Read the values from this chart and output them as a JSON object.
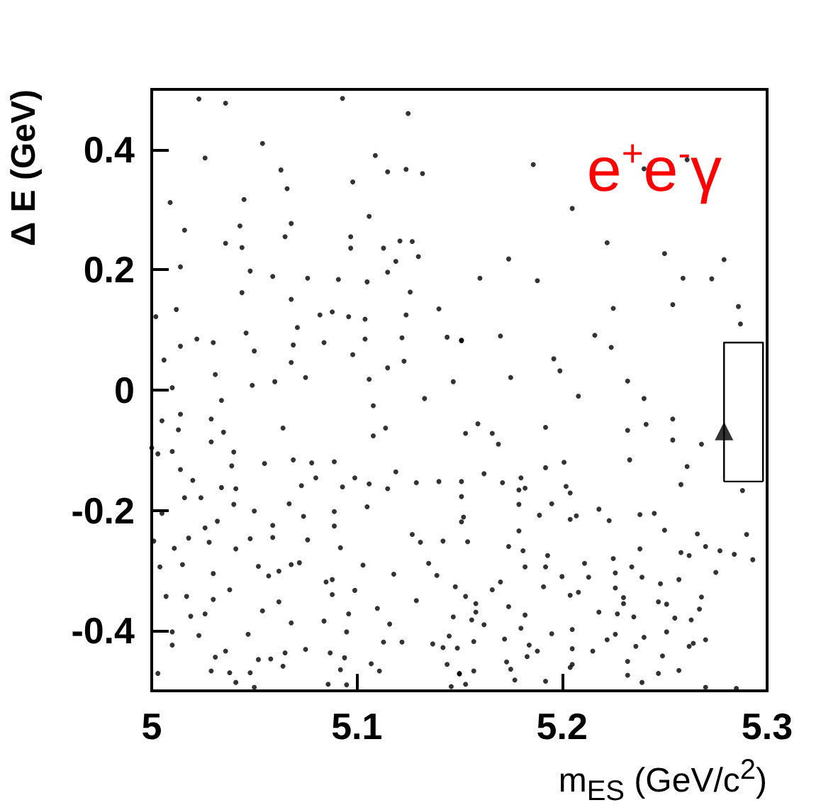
{
  "chart_data": {
    "type": "scatter",
    "xlabel": "m$_{ES}$ (GeV/c$^{2}$)",
    "ylabel": "Δ E (GeV)",
    "annotations": [
      "e$^{+}$e$^{-}$γ"
    ],
    "xlim": [
      5,
      5.3
    ],
    "xticks": [
      5,
      5.1,
      5.2,
      5.3
    ],
    "ylim": [
      -0.5,
      0.5
    ],
    "yticks": [
      -0.4,
      -0.2,
      0,
      0.2,
      0.4
    ],
    "grid": false,
    "series": [
      {
        "type": "scatter",
        "color": "#000000",
        "marker": "circle",
        "x": [
          5.023,
          5.036,
          5.093,
          5.125,
          5.054,
          5.026,
          5.109,
          5.115,
          5.124,
          5.132,
          5.063,
          5.098,
          5.066,
          5.009,
          5.045,
          5.106,
          5.016,
          5.043,
          5.068,
          5.065,
          5.036,
          5.044,
          5.097,
          5.097,
          5.113,
          5.121,
          5.127,
          5.119,
          5.13,
          5.014,
          5.048,
          5.059,
          5.076,
          5.091,
          5.115,
          5.105,
          5.044,
          5.068,
          5.126,
          5.002,
          5.012,
          5.082,
          5.088,
          5.096,
          5.104,
          5.124,
          5.14,
          5.071,
          5.014,
          5.022,
          5.03,
          5.046,
          5.05,
          5.069,
          5.084,
          5.104,
          5.122,
          5.144,
          5.151,
          5.006,
          5.031,
          5.068,
          5.075,
          5.098,
          5.115,
          5.123,
          5.01,
          5.049,
          5.06,
          5.106,
          5.147,
          5.186,
          5.205,
          5.222,
          5.174,
          5.25,
          5.279,
          5.16,
          5.188,
          5.259,
          5.273,
          5.225,
          5.254,
          5.286,
          5.287,
          5.151,
          5.17,
          5.216,
          5.224,
          5.196,
          5.199,
          5.175,
          5.232,
          5.24,
          5.261,
          5.034,
          5.005,
          5.014,
          5.013,
          5.029,
          5.035,
          5.064,
          5.108,
          5.133,
          5.108,
          5.114,
          5.153,
          5.0,
          5.003,
          5.01,
          5.029,
          5.04,
          5.014,
          5.02,
          5.039,
          5.055,
          5.069,
          5.078,
          5.089,
          5.016,
          5.024,
          5.034,
          5.041,
          5.04,
          5.073,
          5.08,
          5.093,
          5.099,
          5.106,
          5.115,
          5.119,
          5.129,
          5.14,
          5.151,
          5.005,
          5.026,
          5.032,
          5.05,
          5.059,
          5.067,
          5.074,
          5.089,
          5.105,
          5.152,
          5.001,
          5.011,
          5.018,
          5.028,
          5.048,
          5.041,
          5.059,
          5.076,
          5.089,
          5.092,
          5.127,
          5.131,
          5.142,
          5.004,
          5.015,
          5.03,
          5.052,
          5.062,
          5.068,
          5.072,
          5.103,
          5.057,
          5.085,
          5.088,
          5.118,
          5.135,
          5.139,
          5.007,
          5.017,
          5.038,
          5.03,
          5.062,
          5.088,
          5.099,
          5.129,
          5.148,
          5.153,
          5.019,
          5.026,
          5.054,
          5.068,
          5.084,
          5.096,
          5.11,
          5.116,
          5.147,
          5.01,
          5.01,
          5.023,
          5.047,
          5.075,
          5.095,
          5.113,
          5.122,
          5.145,
          5.031,
          5.036,
          5.052,
          5.058,
          5.065,
          5.087,
          5.094,
          5.137,
          5.142,
          5.144,
          5.003,
          5.029,
          5.038,
          5.048,
          5.064,
          5.092,
          5.107,
          5.111,
          5.15,
          5.041,
          5.05,
          5.086,
          5.095,
          5.146,
          5.153,
          5.208,
          5.24,
          5.159,
          5.166,
          5.169,
          5.192,
          5.232,
          5.241,
          5.254,
          5.254,
          5.268,
          5.233,
          5.162,
          5.171,
          5.18,
          5.179,
          5.182,
          5.192,
          5.201,
          5.202,
          5.204,
          5.261,
          5.258,
          5.288,
          5.151,
          5.179,
          5.195,
          5.189,
          5.204,
          5.207,
          5.218,
          5.223,
          5.238,
          5.245,
          5.151,
          5.25,
          5.179,
          5.154,
          5.174,
          5.181,
          5.193,
          5.266,
          5.27,
          5.277,
          5.284,
          5.29,
          5.293,
          5.238,
          5.258,
          5.262,
          5.182,
          5.192,
          5.211,
          5.225,
          5.234,
          5.275,
          5.17,
          5.166,
          5.191,
          5.2,
          5.213,
          5.226,
          5.239,
          5.226,
          5.248,
          5.257,
          5.204,
          5.208,
          5.23,
          5.268,
          5.158,
          5.174,
          5.247,
          5.251,
          5.23,
          5.267,
          5.158,
          5.156,
          5.182,
          5.218,
          5.227,
          5.235,
          5.255,
          5.263,
          5.162,
          5.18,
          5.195,
          5.205,
          5.226,
          5.24,
          5.251,
          5.172,
          5.157,
          5.222,
          5.27,
          5.149,
          5.184,
          5.188,
          5.205,
          5.215,
          5.236,
          5.262,
          5.264,
          5.183,
          5.249,
          5.173,
          5.232,
          5.15,
          5.157,
          5.175,
          5.205,
          5.204,
          5.232,
          5.247,
          5.257,
          5.177,
          5.192,
          5.239,
          5.27,
          5.285
        ],
        "values": [
          0.484,
          0.477,
          0.485,
          0.46,
          0.41,
          0.386,
          0.39,
          0.363,
          0.367,
          0.36,
          0.366,
          0.346,
          0.335,
          0.312,
          0.317,
          0.289,
          0.266,
          0.273,
          0.277,
          0.255,
          0.244,
          0.237,
          0.255,
          0.236,
          0.236,
          0.248,
          0.247,
          0.214,
          0.222,
          0.205,
          0.198,
          0.189,
          0.186,
          0.184,
          0.196,
          0.18,
          0.162,
          0.151,
          0.163,
          0.122,
          0.134,
          0.125,
          0.13,
          0.122,
          0.118,
          0.125,
          0.135,
          0.104,
          0.073,
          0.085,
          0.079,
          0.095,
          0.065,
          0.075,
          0.079,
          0.085,
          0.087,
          0.088,
          0.082,
          0.05,
          0.026,
          0.046,
          0.021,
          0.059,
          0.037,
          0.048,
          0.004,
          0.008,
          0.014,
          0.018,
          0.014,
          0.375,
          0.302,
          0.245,
          0.218,
          0.227,
          0.217,
          0.186,
          0.182,
          0.186,
          0.185,
          0.136,
          0.142,
          0.139,
          0.11,
          0.083,
          0.09,
          0.091,
          0.071,
          0.052,
          0.032,
          0.021,
          0.015,
          0.368,
          0.383,
          -0.017,
          -0.051,
          -0.04,
          -0.066,
          -0.048,
          -0.07,
          -0.063,
          -0.026,
          -0.014,
          -0.076,
          -0.063,
          -0.072,
          -0.096,
          -0.106,
          -0.102,
          -0.086,
          -0.103,
          -0.132,
          -0.15,
          -0.126,
          -0.122,
          -0.116,
          -0.121,
          -0.119,
          -0.179,
          -0.179,
          -0.162,
          -0.164,
          -0.19,
          -0.159,
          -0.146,
          -0.161,
          -0.146,
          -0.156,
          -0.164,
          -0.136,
          -0.154,
          -0.152,
          -0.152,
          -0.205,
          -0.229,
          -0.218,
          -0.201,
          -0.225,
          -0.189,
          -0.21,
          -0.202,
          -0.194,
          -0.211,
          -0.251,
          -0.263,
          -0.246,
          -0.253,
          -0.247,
          -0.264,
          -0.245,
          -0.249,
          -0.226,
          -0.262,
          -0.24,
          -0.253,
          -0.251,
          -0.294,
          -0.29,
          -0.305,
          -0.293,
          -0.301,
          -0.29,
          -0.287,
          -0.291,
          -0.309,
          -0.319,
          -0.315,
          -0.306,
          -0.288,
          -0.308,
          -0.343,
          -0.343,
          -0.332,
          -0.348,
          -0.352,
          -0.34,
          -0.333,
          -0.35,
          -0.327,
          -0.343,
          -0.376,
          -0.372,
          -0.367,
          -0.387,
          -0.384,
          -0.372,
          -0.363,
          -0.389,
          -0.377,
          -0.402,
          -0.424,
          -0.408,
          -0.406,
          -0.431,
          -0.402,
          -0.419,
          -0.419,
          -0.409,
          -0.444,
          -0.434,
          -0.448,
          -0.447,
          -0.437,
          -0.437,
          -0.445,
          -0.422,
          -0.428,
          -0.456,
          -0.471,
          -0.467,
          -0.47,
          -0.47,
          -0.459,
          -0.465,
          -0.455,
          -0.467,
          -0.471,
          -0.486,
          -0.494,
          -0.489,
          -0.49,
          -0.493,
          -0.489,
          -0.01,
          -0.014,
          -0.056,
          -0.072,
          -0.09,
          -0.062,
          -0.067,
          -0.057,
          -0.048,
          -0.083,
          -0.09,
          -0.116,
          -0.139,
          -0.154,
          -0.146,
          -0.166,
          -0.163,
          -0.129,
          -0.12,
          -0.16,
          -0.171,
          -0.127,
          -0.157,
          -0.167,
          -0.177,
          -0.19,
          -0.189,
          -0.208,
          -0.215,
          -0.209,
          -0.198,
          -0.217,
          -0.207,
          -0.205,
          -0.219,
          -0.233,
          -0.234,
          -0.252,
          -0.26,
          -0.267,
          -0.275,
          -0.239,
          -0.26,
          -0.267,
          -0.273,
          -0.24,
          -0.282,
          -0.264,
          -0.27,
          -0.275,
          -0.294,
          -0.294,
          -0.288,
          -0.28,
          -0.294,
          -0.303,
          -0.319,
          -0.332,
          -0.327,
          -0.31,
          -0.311,
          -0.304,
          -0.311,
          -0.329,
          -0.322,
          -0.315,
          -0.341,
          -0.336,
          -0.345,
          -0.344,
          -0.355,
          -0.36,
          -0.352,
          -0.356,
          -0.355,
          -0.364,
          -0.369,
          -0.382,
          -0.374,
          -0.369,
          -0.372,
          -0.377,
          -0.379,
          -0.382,
          -0.39,
          -0.396,
          -0.405,
          -0.398,
          -0.406,
          -0.411,
          -0.402,
          -0.414,
          -0.418,
          -0.415,
          -0.415,
          -0.429,
          -0.424,
          -0.434,
          -0.43,
          -0.434,
          -0.426,
          -0.426,
          -0.421,
          -0.443,
          -0.442,
          -0.452,
          -0.451,
          -0.472,
          -0.467,
          -0.464,
          -0.456,
          -0.461,
          -0.474,
          -0.471,
          -0.466,
          -0.482,
          -0.484,
          -0.486,
          -0.494,
          -0.496
        ]
      },
      {
        "type": "line",
        "color": "#000000",
        "marker": "none",
        "line_style": "solid",
        "x": [
          5.279,
          5.279,
          5.298,
          5.298
        ],
        "values": [
          -0.152,
          0.079,
          0.079,
          -0.152
        ]
      },
      {
        "type": "line",
        "color": "#000000",
        "marker": "none",
        "line_style": "solid",
        "x": [
          5.279,
          5.298
        ],
        "values": [
          -0.152,
          -0.152
        ]
      },
      {
        "type": "scatter",
        "color": "#000000",
        "marker": "triangle",
        "x": [
          5.279
        ],
        "values": [
          -0.068
        ]
      }
    ]
  }
}
